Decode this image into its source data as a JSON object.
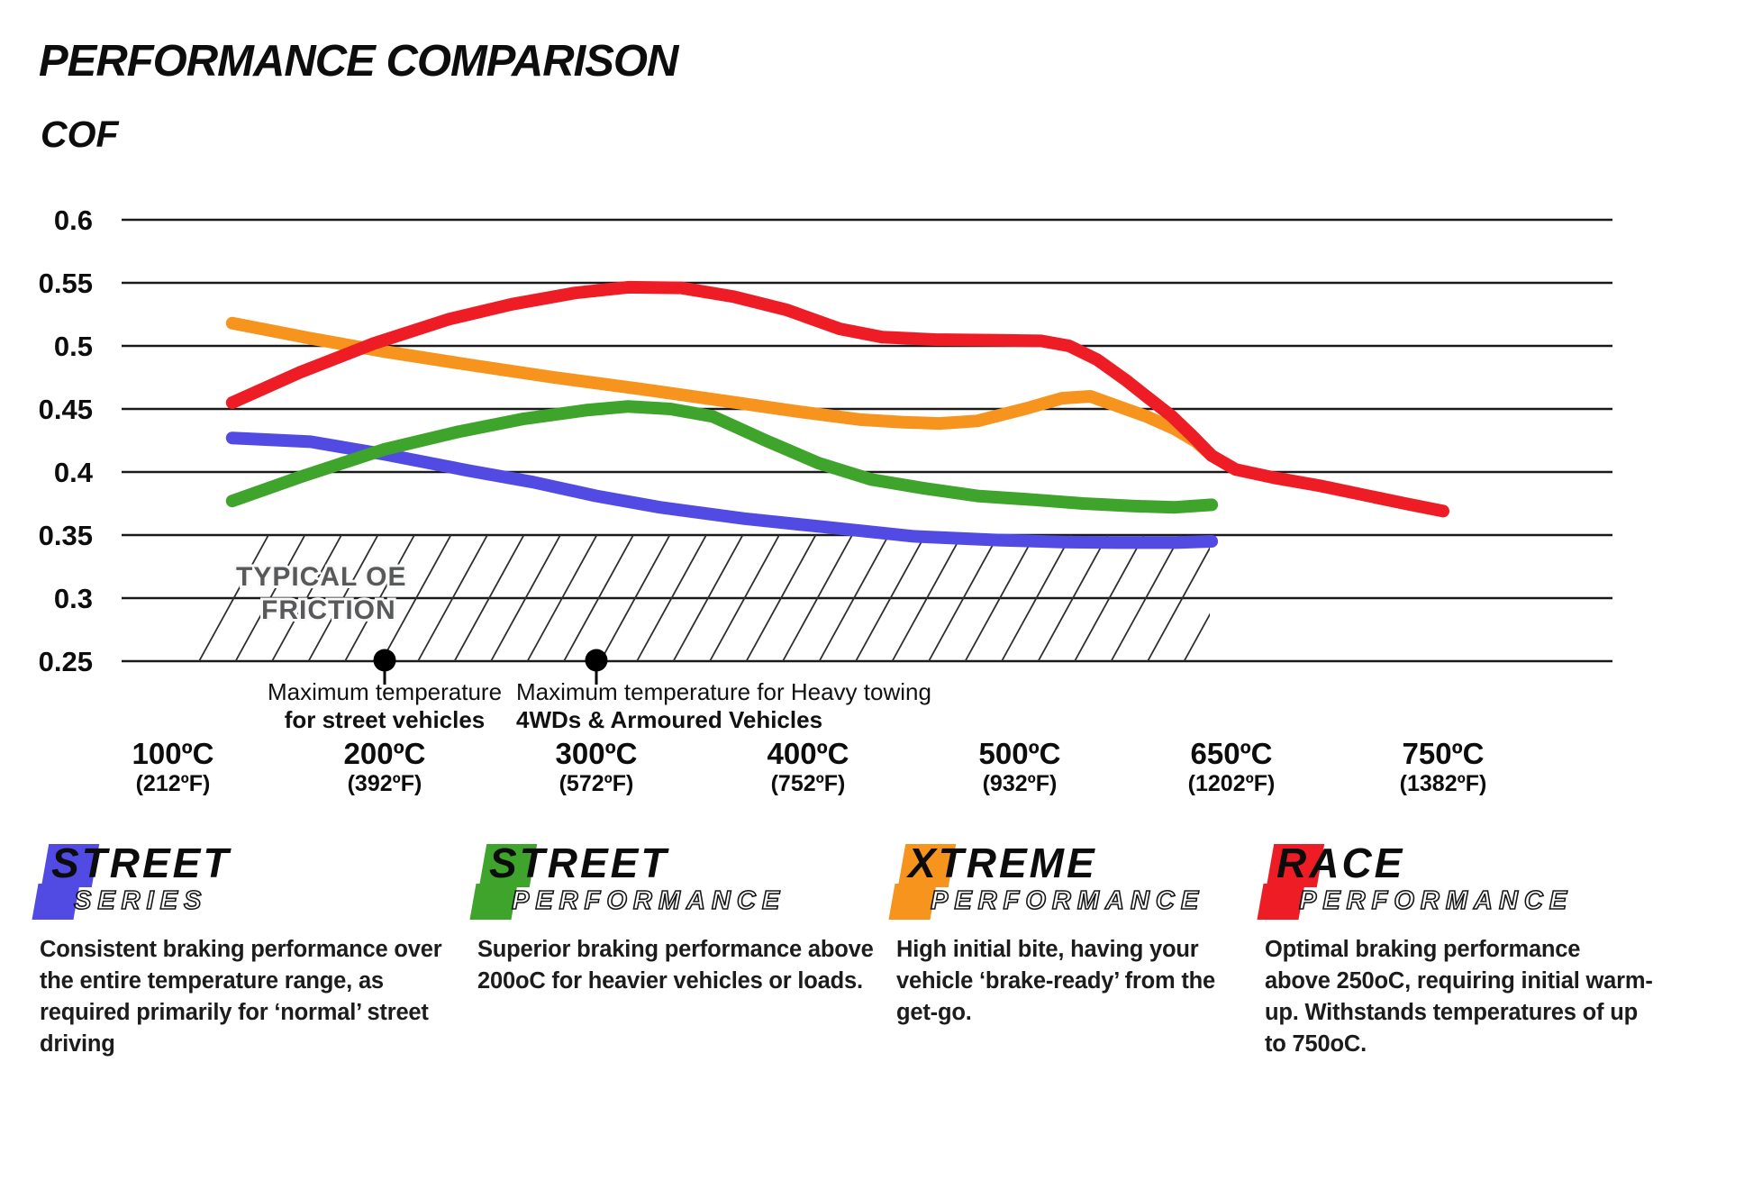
{
  "header": {
    "title": "PERFORMANCE COMPARISON",
    "y_axis_label": "COF"
  },
  "chart_data": {
    "type": "line",
    "title": "PERFORMANCE COMPARISON",
    "ylabel": "COF",
    "xlabel": "",
    "grid": "horizontal",
    "legend_position": "bottom",
    "ylim": [
      0.25,
      0.6
    ],
    "y_ticks": [
      0.6,
      0.55,
      0.5,
      0.45,
      0.4,
      0.35,
      0.3,
      0.25
    ],
    "x_ticks": [
      {
        "t": 100,
        "label_c": "100ºC",
        "label_f": "(212ºF)"
      },
      {
        "t": 200,
        "label_c": "200ºC",
        "label_f": "(392ºF)"
      },
      {
        "t": 300,
        "label_c": "300ºC",
        "label_f": "(572ºF)"
      },
      {
        "t": 400,
        "label_c": "400ºC",
        "label_f": "(752ºF)"
      },
      {
        "t": 500,
        "label_c": "500ºC",
        "label_f": "(932ºF)"
      },
      {
        "t": 650,
        "label_c": "650ºC",
        "label_f": "(1202ºF)"
      },
      {
        "t": 750,
        "label_c": "750ºC",
        "label_f": "(1382ºF)"
      }
    ],
    "series": [
      {
        "name": "Xtreme Performance",
        "color": "#F7941D",
        "points": [
          [
            128,
            0.518
          ],
          [
            165,
            0.506
          ],
          [
            200,
            0.4955
          ],
          [
            240,
            0.485
          ],
          [
            280,
            0.475
          ],
          [
            320,
            0.466
          ],
          [
            360,
            0.4565
          ],
          [
            395,
            0.448
          ],
          [
            425,
            0.4415
          ],
          [
            445,
            0.4395
          ],
          [
            462,
            0.4385
          ],
          [
            480,
            0.4405
          ],
          [
            505,
            0.4505
          ],
          [
            530,
            0.4585
          ],
          [
            550,
            0.46
          ],
          [
            570,
            0.452
          ],
          [
            590,
            0.444
          ],
          [
            610,
            0.434
          ],
          [
            625,
            0.424
          ],
          [
            636,
            0.413
          ]
        ]
      },
      {
        "name": "Race Performance",
        "color": "#EE1C25",
        "points": [
          [
            128,
            0.455
          ],
          [
            160,
            0.479
          ],
          [
            195,
            0.502
          ],
          [
            230,
            0.521
          ],
          [
            260,
            0.533
          ],
          [
            290,
            0.542
          ],
          [
            315,
            0.5465
          ],
          [
            340,
            0.546
          ],
          [
            365,
            0.539
          ],
          [
            390,
            0.5285
          ],
          [
            415,
            0.5135
          ],
          [
            435,
            0.507
          ],
          [
            460,
            0.505
          ],
          [
            490,
            0.5045
          ],
          [
            515,
            0.504
          ],
          [
            535,
            0.5
          ],
          [
            555,
            0.489
          ],
          [
            575,
            0.473
          ],
          [
            592,
            0.458
          ],
          [
            608,
            0.444
          ],
          [
            622,
            0.429
          ],
          [
            636,
            0.413
          ],
          [
            652,
            0.402
          ],
          [
            670,
            0.3955
          ],
          [
            692,
            0.389
          ],
          [
            712,
            0.382
          ],
          [
            732,
            0.375
          ],
          [
            750,
            0.369
          ]
        ]
      },
      {
        "name": "Street Series",
        "color": "#514AE3",
        "points": [
          [
            128,
            0.427
          ],
          [
            165,
            0.424
          ],
          [
            200,
            0.414
          ],
          [
            240,
            0.401
          ],
          [
            270,
            0.392
          ],
          [
            300,
            0.381
          ],
          [
            330,
            0.372
          ],
          [
            370,
            0.363
          ],
          [
            410,
            0.356
          ],
          [
            450,
            0.349
          ],
          [
            490,
            0.346
          ],
          [
            530,
            0.3445
          ],
          [
            570,
            0.344
          ],
          [
            610,
            0.344
          ],
          [
            636,
            0.345
          ]
        ]
      },
      {
        "name": "Street Performance",
        "color": "#3FA42B",
        "points": [
          [
            128,
            0.377
          ],
          [
            160,
            0.396
          ],
          [
            200,
            0.418
          ],
          [
            235,
            0.432
          ],
          [
            265,
            0.442
          ],
          [
            295,
            0.449
          ],
          [
            315,
            0.452
          ],
          [
            335,
            0.45
          ],
          [
            355,
            0.444
          ],
          [
            380,
            0.425
          ],
          [
            405,
            0.407
          ],
          [
            430,
            0.394
          ],
          [
            455,
            0.387
          ],
          [
            480,
            0.381
          ],
          [
            510,
            0.378
          ],
          [
            545,
            0.375
          ],
          [
            580,
            0.373
          ],
          [
            610,
            0.372
          ],
          [
            636,
            0.374
          ]
        ]
      }
    ],
    "oe_band": {
      "label": "TYPICAL OE\nFRICTION",
      "cof_min": 0.25,
      "cof_max": 0.35,
      "color": "#58595B"
    },
    "annotations": [
      {
        "t": 200,
        "align": "middle",
        "lines": [
          "Maximum temperature",
          "for street vehicles"
        ]
      },
      {
        "t": 300,
        "align": "start",
        "lines": [
          "Maximum temperature for Heavy towing",
          "4WDs & Armoured Vehicles"
        ]
      }
    ]
  },
  "legend": [
    {
      "word1": "STREET",
      "word2": "SERIES",
      "color": "#514AE3",
      "description": "Consistent braking performance over\nthe entire temperature range, as\nrequired primarily for ‘normal’ street\ndriving"
    },
    {
      "word1": "STREET",
      "word2": "PERFORMANCE",
      "color": "#3FA42B",
      "description": "Superior braking performance above\n200oC for heavier vehicles or loads."
    },
    {
      "word1": "XTREME",
      "word2": "PERFORMANCE",
      "color": "#F7941D",
      "description": "High initial bite, having your\nvehicle ‘brake-ready’ from the\nget-go."
    },
    {
      "word1": "RACE",
      "word2": "PERFORMANCE",
      "color": "#EE1C25",
      "description": "Optimal braking performance\nabove 250oC, requiring initial warm-\nup. Withstands temperatures of up\nto 750oC."
    }
  ]
}
